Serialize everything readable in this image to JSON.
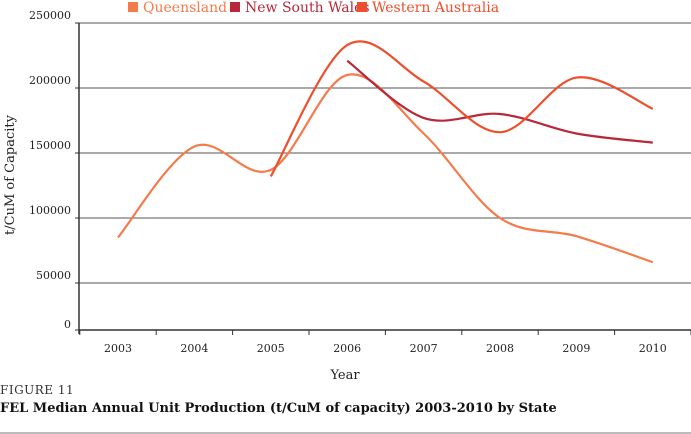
{
  "chart_data": {
    "type": "line",
    "title": "",
    "xlabel": "Year",
    "ylabel": "t/CuM of Capacity",
    "x": [
      2003,
      2004,
      2005,
      2006,
      2007,
      2008,
      2009,
      2010
    ],
    "x_tick_labels": [
      "2003",
      "2004",
      "2005",
      "2006",
      "2007",
      "2008",
      "2009",
      "2010"
    ],
    "y_tick_labels": [
      "250000",
      "200000",
      "150000",
      "100000",
      "50000",
      "0"
    ],
    "ylim": [
      0,
      250000
    ],
    "grid": true,
    "legend_placement": "top",
    "series": [
      {
        "name": "Queensland",
        "color": "#f47b4b",
        "values": [
          85000,
          155000,
          137000,
          210000,
          165000,
          100000,
          86000,
          66000
        ]
      },
      {
        "name": "New South Wales",
        "color": "#b8283a",
        "values": [
          null,
          null,
          null,
          221000,
          177000,
          180000,
          165000,
          158000
        ]
      },
      {
        "name": "Western Australia",
        "color": "#ef4e2c",
        "values": [
          null,
          null,
          132000,
          233000,
          205000,
          166000,
          208000,
          184000
        ]
      }
    ]
  },
  "figure": {
    "label": "FIGURE 11",
    "caption": "FEL Median Annual Unit Production (t/CuM of capacity) 2003-2010 by State"
  }
}
